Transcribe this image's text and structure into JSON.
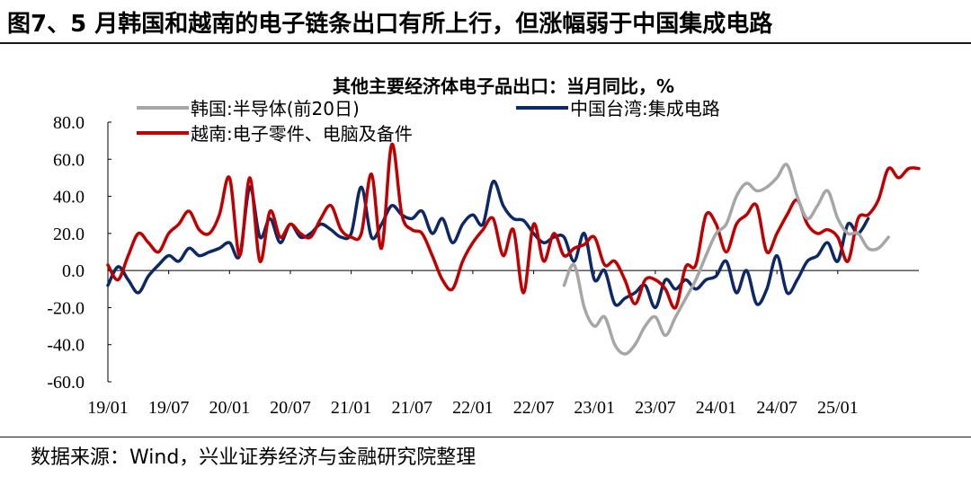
{
  "figure": {
    "title": "图7、5 月韩国和越南的电子链条出口有所上行，但涨幅弱于中国集成电路",
    "source": "数据来源：Wind，兴业证券经济与金融研究院整理"
  },
  "chart_data": {
    "type": "line",
    "title": "其他主要经济体电子品出口：当月同比，%",
    "xlabel": "",
    "ylabel": "",
    "ylim": [
      -60,
      80
    ],
    "yticks": [
      "80.0",
      "60.0",
      "40.0",
      "20.0",
      "0.0",
      "-20.0",
      "-40.0",
      "-60.0"
    ],
    "xtick_labels": [
      "19/01",
      "19/07",
      "20/01",
      "20/07",
      "21/01",
      "21/07",
      "22/01",
      "22/07",
      "23/01",
      "23/07",
      "24/01",
      "24/07",
      "25/01"
    ],
    "grid": false,
    "legend_position": "top-left",
    "series": [
      {
        "name": "韩国:半导体(前20日)",
        "color": "#a6a6a6",
        "start": "2022-10",
        "values": [
          -8,
          3,
          -20,
          -30,
          -25,
          -40,
          -45,
          -40,
          -30,
          -25,
          -35,
          -25,
          -15,
          -5,
          8,
          20,
          25,
          40,
          47,
          43,
          45,
          50,
          57,
          40,
          28,
          35,
          43,
          28,
          20,
          20,
          12,
          12,
          18
        ]
      },
      {
        "name": "中国台湾:集成电路",
        "color": "#0c2866",
        "start": "2019-01",
        "values": [
          -8,
          2,
          -5,
          -12,
          -3,
          3,
          8,
          5,
          12,
          8,
          10,
          12,
          15,
          8,
          45,
          18,
          28,
          15,
          25,
          18,
          20,
          25,
          22,
          18,
          20,
          45,
          18,
          25,
          35,
          30,
          28,
          32,
          20,
          28,
          15,
          25,
          30,
          25,
          48,
          35,
          28,
          27,
          20,
          15,
          18,
          18,
          5,
          20,
          -5,
          0,
          -18,
          -15,
          -12,
          -8,
          -20,
          -5,
          -10,
          -5,
          -10,
          -5,
          -3,
          5,
          -12,
          0,
          -18,
          -10,
          8,
          -12,
          -5,
          5,
          8,
          15,
          5,
          25,
          20,
          28
        ]
      },
      {
        "name": "越南:电子零件、电脑及备件",
        "color": "#c00000",
        "start": "2019-01",
        "values": [
          3,
          -5,
          8,
          20,
          15,
          10,
          20,
          25,
          32,
          22,
          20,
          30,
          50,
          8,
          50,
          5,
          32,
          18,
          25,
          20,
          18,
          28,
          35,
          22,
          18,
          20,
          52,
          12,
          68,
          30,
          22,
          20,
          8,
          -5,
          -10,
          5,
          15,
          22,
          28,
          8,
          22,
          -12,
          25,
          5,
          20,
          8,
          12,
          14,
          18,
          3,
          5,
          -5,
          -18,
          -5,
          -5,
          -10,
          -20,
          2,
          3,
          30,
          25,
          10,
          25,
          30,
          35,
          10,
          20,
          30,
          38,
          25,
          20,
          22,
          18,
          5,
          28,
          30,
          38,
          55,
          50,
          55,
          55
        ]
      }
    ]
  }
}
